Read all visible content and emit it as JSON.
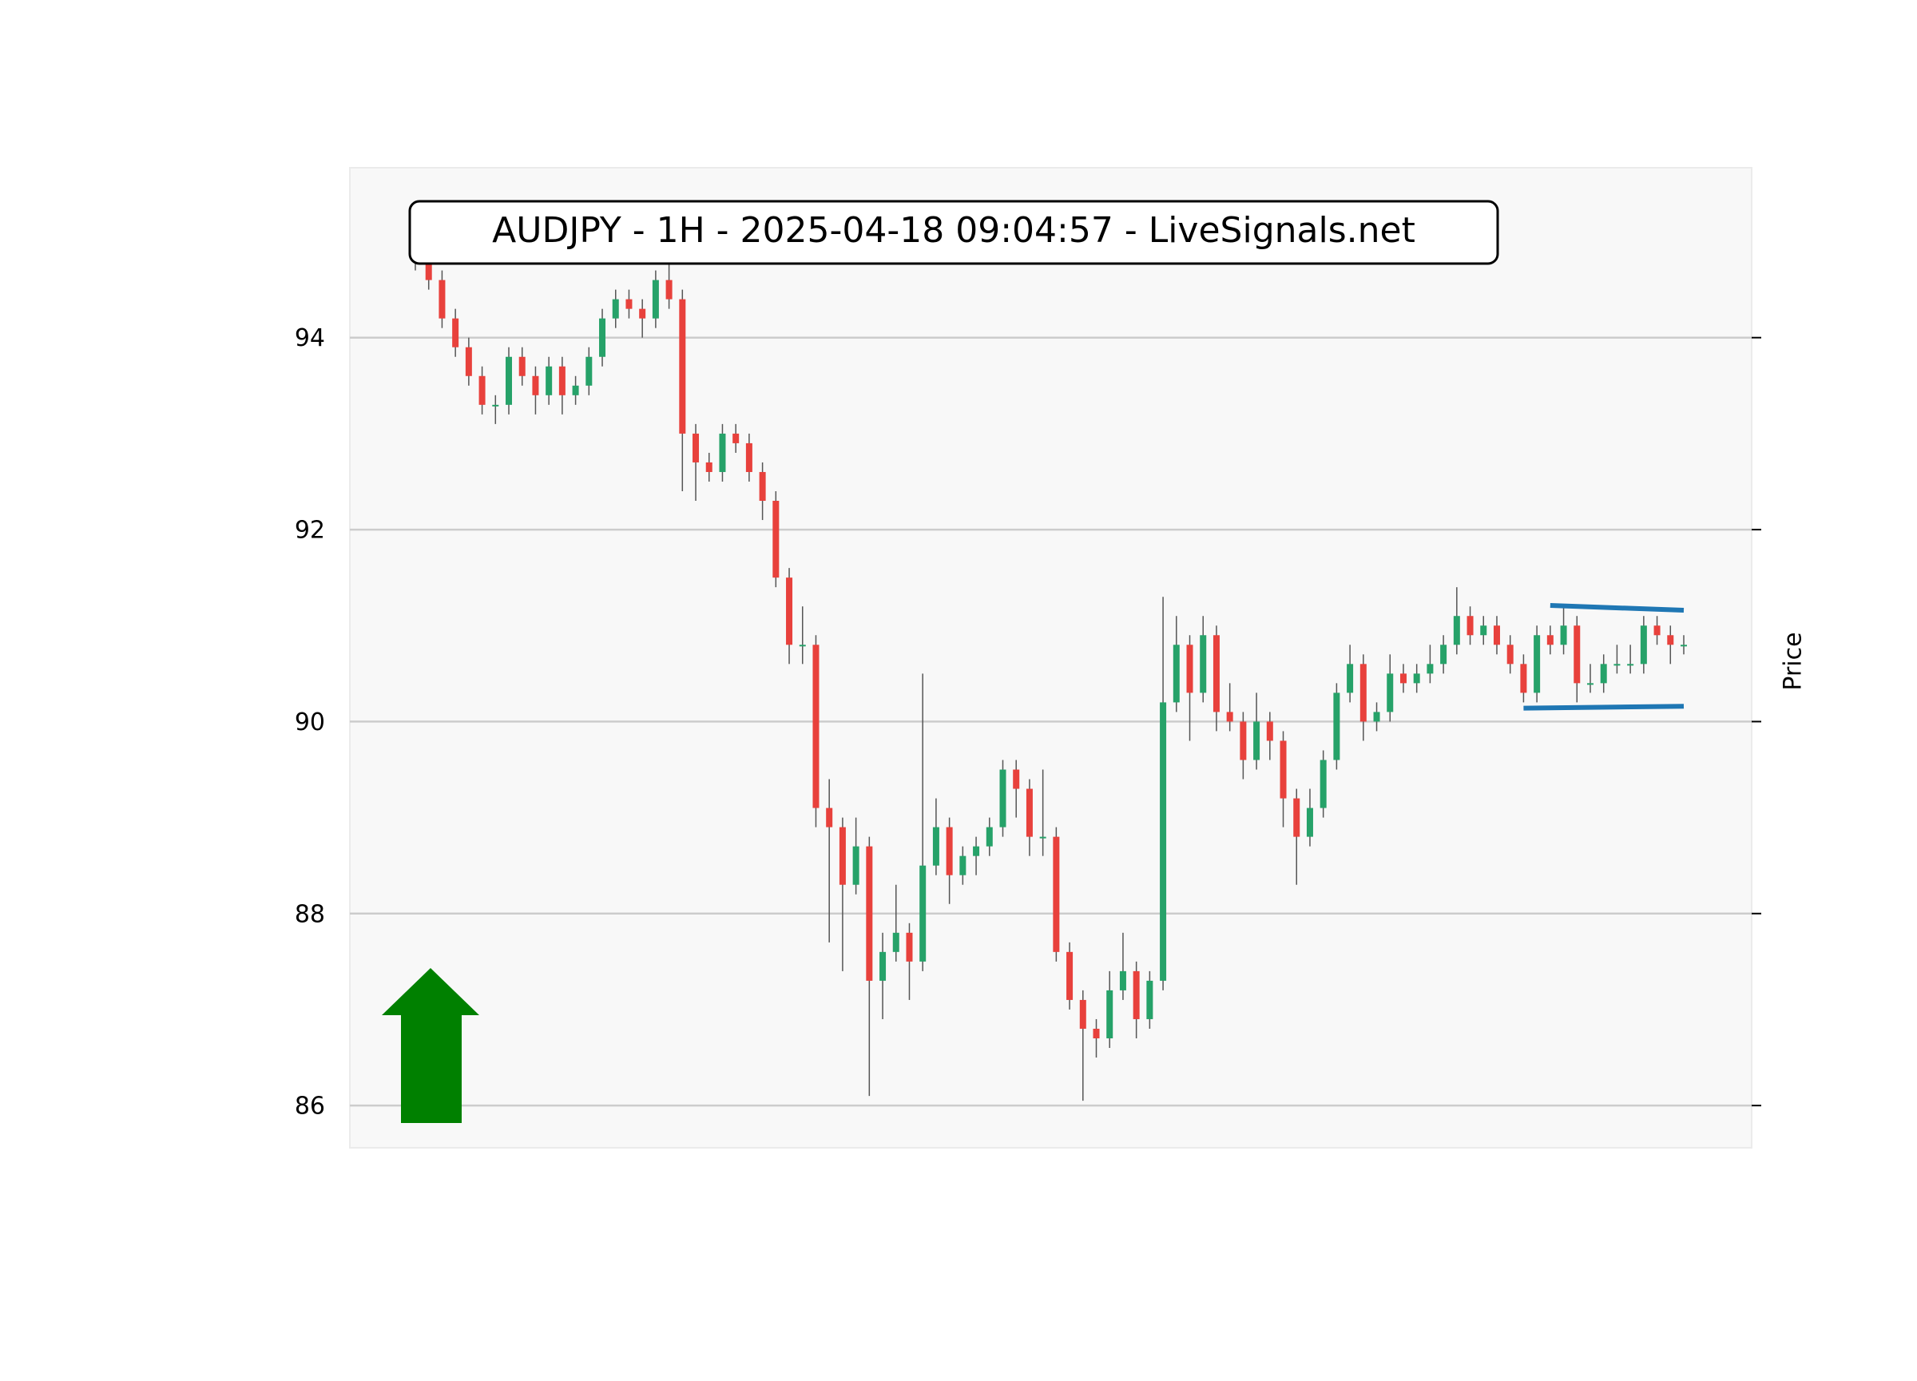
{
  "chart_data": {
    "type": "candlestick",
    "title": "AUDJPY - 1H - 2025-04-18 09:04:57 - LiveSignals.net",
    "y_label": "Price",
    "up_color": "#26a269",
    "down_color": "#e8413c",
    "grid": true,
    "ylim": [
      85.56,
      95.77
    ],
    "yticks": [
      86,
      88,
      90,
      92,
      94
    ],
    "open": [
      94.8,
      94.9,
      94.6,
      94.2,
      93.9,
      93.6,
      93.3,
      93.3,
      93.8,
      93.6,
      93.4,
      93.7,
      93.4,
      93.5,
      93.8,
      94.2,
      94.4,
      94.3,
      94.2,
      94.6,
      94.4,
      93.0,
      92.7,
      92.6,
      93.0,
      92.9,
      92.6,
      92.3,
      91.5,
      90.8,
      90.8,
      89.1,
      88.9,
      88.3,
      88.7,
      87.3,
      87.6,
      87.8,
      87.5,
      88.5,
      88.9,
      88.4,
      88.6,
      88.7,
      88.9,
      89.5,
      89.3,
      88.8,
      88.8,
      87.6,
      87.1,
      86.8,
      86.7,
      87.2,
      87.4,
      86.9,
      87.3,
      90.2,
      90.8,
      90.3,
      90.9,
      90.1,
      90.0,
      89.6,
      90.0,
      89.8,
      89.2,
      88.8,
      89.1,
      89.6,
      90.3,
      90.6,
      90.0,
      90.1,
      90.5,
      90.4,
      90.5,
      90.6,
      90.8,
      91.1,
      90.9,
      91.0,
      90.8,
      90.6,
      90.3,
      90.9,
      90.8,
      91.0,
      90.4,
      90.4,
      90.6,
      90.6,
      90.6,
      91.0,
      90.9,
      90.8
    ],
    "high": [
      95.0,
      95.0,
      94.7,
      94.3,
      94.0,
      93.7,
      93.4,
      93.9,
      93.9,
      93.7,
      93.8,
      93.8,
      93.6,
      93.9,
      94.3,
      94.5,
      94.5,
      94.4,
      94.7,
      94.8,
      94.5,
      93.1,
      92.8,
      93.1,
      93.1,
      93.0,
      92.7,
      92.4,
      91.6,
      91.2,
      90.9,
      89.4,
      89.0,
      89.0,
      88.8,
      87.8,
      88.3,
      87.9,
      90.5,
      89.2,
      89.0,
      88.7,
      88.8,
      89.0,
      89.6,
      89.6,
      89.4,
      89.5,
      88.9,
      87.7,
      87.2,
      86.9,
      87.4,
      87.8,
      87.5,
      87.4,
      91.3,
      91.1,
      90.9,
      91.1,
      91.0,
      90.4,
      90.1,
      90.3,
      90.1,
      89.9,
      89.3,
      89.3,
      89.7,
      90.4,
      90.8,
      90.7,
      90.2,
      90.7,
      90.6,
      90.6,
      90.8,
      90.9,
      91.4,
      91.2,
      91.1,
      91.1,
      90.9,
      90.7,
      91.0,
      91.0,
      91.2,
      91.1,
      90.6,
      90.7,
      90.8,
      90.8,
      91.1,
      91.1,
      91.0,
      90.9
    ],
    "low": [
      94.7,
      94.5,
      94.1,
      93.8,
      93.5,
      93.2,
      93.1,
      93.2,
      93.5,
      93.2,
      93.3,
      93.2,
      93.3,
      93.4,
      93.7,
      94.1,
      94.2,
      94.0,
      94.1,
      94.3,
      92.4,
      92.3,
      92.5,
      92.5,
      92.8,
      92.5,
      92.1,
      91.4,
      90.6,
      90.6,
      88.9,
      87.7,
      87.4,
      88.2,
      86.1,
      86.9,
      87.5,
      87.1,
      87.4,
      88.4,
      88.1,
      88.3,
      88.4,
      88.6,
      88.8,
      89.0,
      88.6,
      88.6,
      87.5,
      87.0,
      86.05,
      86.5,
      86.6,
      87.1,
      86.7,
      86.8,
      87.2,
      90.1,
      89.8,
      90.2,
      89.9,
      89.9,
      89.4,
      89.5,
      89.6,
      88.9,
      88.3,
      88.7,
      89.0,
      89.5,
      90.2,
      89.8,
      89.9,
      90.0,
      90.3,
      90.3,
      90.4,
      90.5,
      90.7,
      90.8,
      90.8,
      90.7,
      90.5,
      90.2,
      90.2,
      90.7,
      90.7,
      90.2,
      90.3,
      90.3,
      90.5,
      90.5,
      90.5,
      90.8,
      90.6,
      90.7
    ],
    "close": [
      94.9,
      94.6,
      94.2,
      93.9,
      93.6,
      93.3,
      93.3,
      93.8,
      93.6,
      93.4,
      93.7,
      93.4,
      93.5,
      93.8,
      94.2,
      94.4,
      94.3,
      94.2,
      94.6,
      94.4,
      93.0,
      92.7,
      92.6,
      93.0,
      92.9,
      92.6,
      92.3,
      91.5,
      90.8,
      90.8,
      89.1,
      88.9,
      88.3,
      88.7,
      87.3,
      87.6,
      87.8,
      87.5,
      88.5,
      88.9,
      88.4,
      88.6,
      88.7,
      88.9,
      89.5,
      89.3,
      88.8,
      88.8,
      87.6,
      87.1,
      86.8,
      86.7,
      87.2,
      87.4,
      86.9,
      87.3,
      90.2,
      90.8,
      90.3,
      90.9,
      90.1,
      90.0,
      89.6,
      90.0,
      89.8,
      89.2,
      88.8,
      89.1,
      89.6,
      90.3,
      90.6,
      90.0,
      90.1,
      90.5,
      90.4,
      90.5,
      90.6,
      90.8,
      91.1,
      90.9,
      91.0,
      90.8,
      90.6,
      90.3,
      90.9,
      90.8,
      91.0,
      90.4,
      90.4,
      90.6,
      90.6,
      90.6,
      91.0,
      90.9,
      90.8,
      90.8
    ],
    "lines": [
      {
        "color": "#1f77b4",
        "x": [
          85,
          95
        ],
        "values": [
          91.21,
          91.16
        ]
      },
      {
        "color": "#1f77b4",
        "x": [
          83,
          95
        ],
        "values": [
          90.14,
          90.16
        ]
      }
    ]
  }
}
